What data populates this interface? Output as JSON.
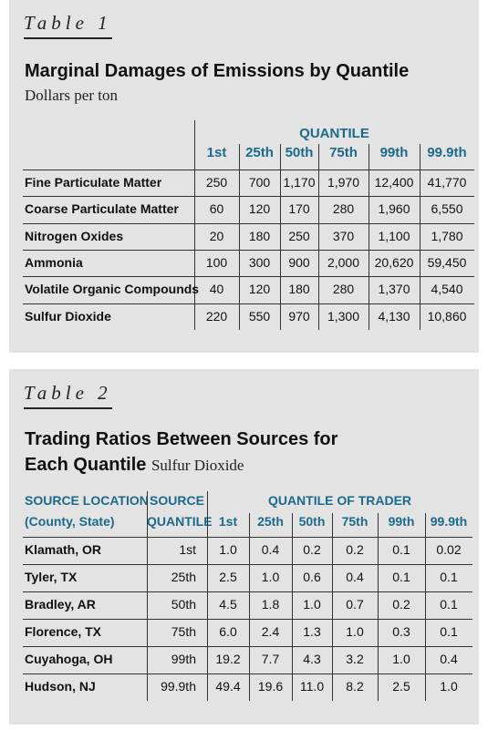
{
  "table1": {
    "label": "Table 1",
    "title": "Marginal Damages of Emissions by Quantile",
    "subtitle": "Dollars per ton",
    "group_header": "QUANTILE",
    "columns": [
      "1st",
      "25th",
      "50th",
      "75th",
      "99th",
      "99.9th"
    ],
    "rows": [
      {
        "label": "Fine Particulate Matter",
        "values": [
          "250",
          "700",
          "1,170",
          "1,970",
          "12,400",
          "41,770"
        ]
      },
      {
        "label": "Coarse Particulate Matter",
        "values": [
          "60",
          "120",
          "170",
          "280",
          "1,960",
          "6,550"
        ]
      },
      {
        "label": "Nitrogen Oxides",
        "values": [
          "20",
          "180",
          "250",
          "370",
          "1,100",
          "1,780"
        ]
      },
      {
        "label": "Ammonia",
        "values": [
          "100",
          "300",
          "900",
          "2,000",
          "20,620",
          "59,450"
        ]
      },
      {
        "label": "Volatile Organic Compounds",
        "values": [
          "40",
          "120",
          "180",
          "280",
          "1,370",
          "4,540"
        ]
      },
      {
        "label": "Sulfur Dioxide",
        "values": [
          "220",
          "550",
          "970",
          "1,300",
          "4,130",
          "10,860"
        ]
      }
    ]
  },
  "table2": {
    "label": "Table 2",
    "title_line1": "Trading Ratios Between Sources for",
    "title_line2": "Each Quantile",
    "subtitle": "Sulfur Dioxide",
    "col_location_1": "SOURCE LOCATION",
    "col_location_2": "(County, State)",
    "col_source_1": "SOURCE",
    "col_source_2": "QUANTILE",
    "group_header": "QUANTILE OF TRADER",
    "columns": [
      "1st",
      "25th",
      "50th",
      "75th",
      "99th",
      "99.9th"
    ],
    "rows": [
      {
        "location": "Klamath, OR",
        "source": "1st",
        "values": [
          "1.0",
          "0.4",
          "0.2",
          "0.2",
          "0.1",
          "0.02"
        ]
      },
      {
        "location": "Tyler, TX",
        "source": "25th",
        "values": [
          "2.5",
          "1.0",
          "0.6",
          "0.4",
          "0.1",
          "0.1"
        ]
      },
      {
        "location": "Bradley, AR",
        "source": "50th",
        "values": [
          "4.5",
          "1.8",
          "1.0",
          "0.7",
          "0.2",
          "0.1"
        ]
      },
      {
        "location": "Florence, TX",
        "source": "75th",
        "values": [
          "6.0",
          "2.4",
          "1.3",
          "1.0",
          "0.3",
          "0.1"
        ]
      },
      {
        "location": "Cuyahoga, OH",
        "source": "99th",
        "values": [
          "19.2",
          "7.7",
          "4.3",
          "3.2",
          "1.0",
          "0.4"
        ]
      },
      {
        "location": "Hudson, NJ",
        "source": "99.9th",
        "values": [
          "49.4",
          "19.6",
          "11.0",
          "8.2",
          "2.5",
          "1.0"
        ]
      }
    ]
  }
}
